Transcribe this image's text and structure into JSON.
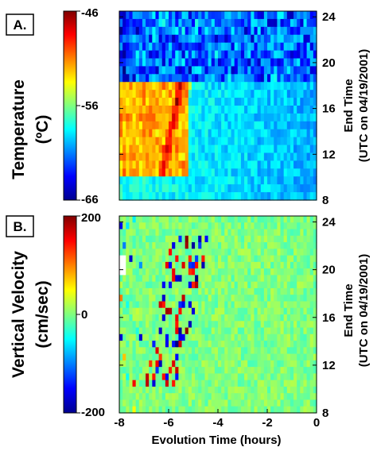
{
  "chart_data": [
    {
      "type": "heatmap",
      "panel_label": "A.",
      "colorbar": {
        "label_lines": [
          "Temperature",
          "(ºC)"
        ],
        "range": [
          -66,
          -46
        ],
        "ticks": [
          -46,
          -56,
          -66
        ],
        "tick_labels": [
          "-46",
          "-56",
          "-66"
        ]
      },
      "xlim": [
        -8,
        0
      ],
      "ylim": [
        8,
        24.5
      ],
      "y_ticks": [
        24,
        20,
        16,
        12,
        8
      ],
      "y_tick_labels": [
        "24",
        "20",
        "16",
        "12",
        "8"
      ],
      "ylabel_lines": [
        "End Time",
        "(UTC on 04/19/2001)"
      ],
      "n_rows": 24,
      "n_cols": 60,
      "background_value": -58,
      "gradient_end_value": -60,
      "features": [
        {
          "kind": "cold_region",
          "y_from": 18.5,
          "y_to": 24.5,
          "value": -64
        },
        {
          "kind": "warm_front",
          "x_at_y8": -6.5,
          "x_at_y24": -4.9,
          "peak_value": -48,
          "y_from": 10,
          "y_to": 19
        },
        {
          "kind": "warm_region",
          "x_from": -8,
          "x_to": -5.2,
          "y_from": 10,
          "y_to": 18.5,
          "value": -53
        }
      ]
    },
    {
      "type": "heatmap",
      "panel_label": "B.",
      "colorbar": {
        "label_lines": [
          "Vertical Velocity",
          "(cm/sec)"
        ],
        "range": [
          -200,
          200
        ],
        "ticks": [
          200,
          0,
          -200
        ],
        "tick_labels": [
          "200",
          "0",
          "-200"
        ]
      },
      "xlim": [
        -8,
        0
      ],
      "ylim": [
        8,
        24.5
      ],
      "x_ticks": [
        -8,
        -6,
        -4,
        -2,
        0
      ],
      "x_tick_labels": [
        "-8",
        "-6",
        "-4",
        "-2",
        "0"
      ],
      "xlabel": "Evolution Time (hours)",
      "y_ticks": [
        24,
        20,
        16,
        12,
        8
      ],
      "y_tick_labels": [
        "24",
        "20",
        "16",
        "12",
        "8"
      ],
      "ylabel_lines": [
        "End Time",
        "(UTC on 04/19/2001)"
      ],
      "n_rows": 30,
      "n_cols": 60,
      "background_value": 0,
      "features": [
        {
          "kind": "strong_updrafts_downdrafts",
          "x_at_y8": -6.5,
          "x_at_y24": -5,
          "amplitude": 200,
          "y_from": 10,
          "y_to": 23
        },
        {
          "kind": "missing_data",
          "x_from": -8,
          "x_to": -7.7,
          "y_from": 19.8,
          "y_to": 21.3
        }
      ]
    }
  ]
}
